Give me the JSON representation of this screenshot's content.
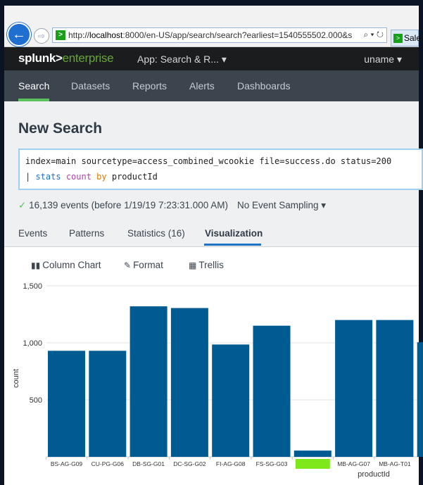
{
  "browser": {
    "back_icon": "arrow-left-icon",
    "url_scheme": "http://",
    "url_host": "localhost",
    "url_rest": ":8000/en-US/app/search/search?earliest=1540555502.000&s",
    "url_tools": "⌕ ▾ ↻",
    "tab_title": "Sale"
  },
  "header": {
    "logo_main": "splunk>",
    "logo_sub": "enterprise",
    "app_menu": "App: Search & R...  ▾",
    "user_menu": "uname ▾"
  },
  "nav": {
    "items": [
      "Search",
      "Datasets",
      "Reports",
      "Alerts",
      "Dashboards"
    ],
    "active": "Search"
  },
  "search": {
    "title": "New Search",
    "line1": "index=main sourcetype=access_combined_wcookie file=success.do status=200",
    "line2_pipe": "| ",
    "line2_cmd": "stats",
    "line2_fn": "count",
    "line2_kw": "by",
    "line2_field": "productId",
    "status_check": "✓",
    "status_text": "16,139 events (before 1/19/19 7:23:31.000 AM)",
    "sampling": "No Event Sampling ▾"
  },
  "tabs": {
    "events": "Events",
    "patterns": "Patterns",
    "statistics": "Statistics (16)",
    "visualization": "Visualization"
  },
  "viz_toolbar": {
    "column_chart": "Column Chart",
    "format": "Format",
    "trellis": "Trellis"
  },
  "colors": {
    "bar": "#005b93",
    "highlight": "#7ee81a",
    "nav_active": "#5cc05c",
    "tab_active": "#1f72c4"
  },
  "chart_data": {
    "type": "bar",
    "xlabel": "productId",
    "ylabel": "count",
    "ylim": [
      0,
      1500
    ],
    "yticks": [
      500,
      1000,
      1500
    ],
    "ytick_labels": [
      "500",
      "1,000",
      "1,500"
    ],
    "categories": [
      "BS-AG-G09",
      "CU-PG-G06",
      "DB-SG-G01",
      "DC-SG-G02",
      "FI-AG-G08",
      "FS-SG-G03",
      "",
      "MB-AG-G07",
      "MB-AG-T01"
    ],
    "values": [
      930,
      930,
      1320,
      1305,
      985,
      1150,
      55,
      1200,
      1200
    ],
    "highlighted_index": 6
  }
}
